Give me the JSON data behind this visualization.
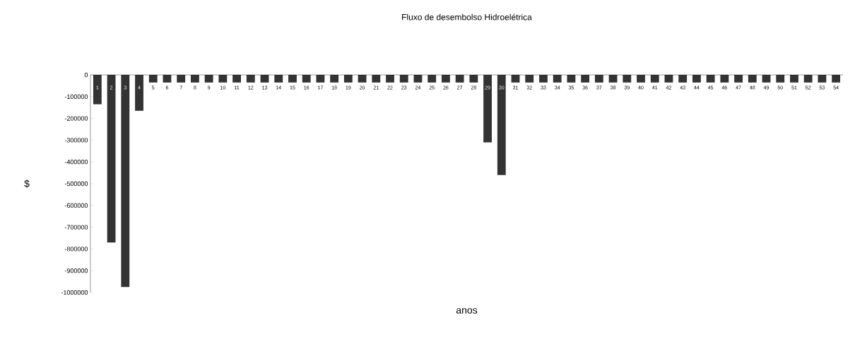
{
  "chart_data": {
    "type": "bar",
    "title": "Fluxo de desembolso Hidroelétrica",
    "xlabel": "anos",
    "ylabel": "$",
    "categories": [
      "1",
      "2",
      "3",
      "4",
      "5",
      "6",
      "7",
      "8",
      "9",
      "10",
      "11",
      "12",
      "13",
      "14",
      "15",
      "16",
      "17",
      "18",
      "19",
      "20",
      "21",
      "22",
      "23",
      "24",
      "25",
      "26",
      "27",
      "28",
      "29",
      "30",
      "31",
      "32",
      "33",
      "34",
      "35",
      "36",
      "37",
      "38",
      "39",
      "40",
      "41",
      "42",
      "43",
      "44",
      "45",
      "46",
      "47",
      "48",
      "49",
      "50",
      "51",
      "52",
      "53",
      "54"
    ],
    "values": [
      -135000,
      -770000,
      -975000,
      -165000,
      -35000,
      -35000,
      -35000,
      -35000,
      -35000,
      -35000,
      -35000,
      -35000,
      -35000,
      -35000,
      -35000,
      -35000,
      -35000,
      -35000,
      -35000,
      -35000,
      -35000,
      -35000,
      -35000,
      -35000,
      -35000,
      -35000,
      -35000,
      -35000,
      -310000,
      -460000,
      -35000,
      -35000,
      -35000,
      -35000,
      -35000,
      -35000,
      -35000,
      -35000,
      -35000,
      -35000,
      -35000,
      -35000,
      -35000,
      -35000,
      -35000,
      -35000,
      -35000,
      -35000,
      -35000,
      -35000,
      -35000,
      -35000,
      -35000,
      -35000
    ],
    "color": "#333333",
    "ylim": [
      -1000000,
      0
    ],
    "yticks": [
      -1000000,
      -900000,
      -800000,
      -700000,
      -600000,
      -500000,
      -400000,
      -300000,
      -200000,
      -100000,
      0
    ],
    "grid": false
  }
}
